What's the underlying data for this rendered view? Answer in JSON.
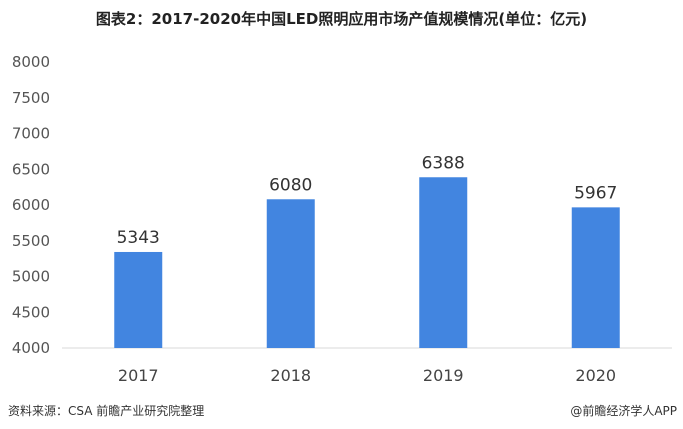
{
  "page": {
    "title": "图表2：2017-2020年中国LED照明应用市场产值规模情况(单位：亿元)",
    "source": "资料来源：CSA 前瞻产业研究院整理",
    "brand": "@前瞻经济学人APP"
  },
  "colors": {
    "bar": "#4285E0",
    "axis": "#D9D9D9"
  },
  "chart_data": {
    "type": "bar",
    "categories": [
      "2017",
      "2018",
      "2019",
      "2020"
    ],
    "values": [
      5343,
      6080,
      6388,
      5967
    ],
    "title": "图表2：2017-2020年中国LED照明应用市场产值规模情况(单位：亿元)",
    "xlabel": "",
    "ylabel": "",
    "ylim": [
      4000,
      8000
    ],
    "yticks": [
      4000,
      4500,
      5000,
      5500,
      6000,
      6500,
      7000,
      7500,
      8000
    ],
    "grid": false,
    "data_labels": true
  }
}
